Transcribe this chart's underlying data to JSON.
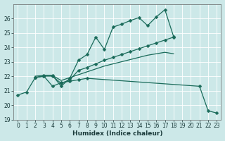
{
  "xlabel": "Humidex (Indice chaleur)",
  "bg_color": "#cce8e8",
  "line_color": "#1a6b5a",
  "grid_color": "#b8d8d8",
  "xlim": [
    -0.5,
    23.5
  ],
  "ylim": [
    19,
    27
  ],
  "yticks": [
    19,
    20,
    21,
    22,
    23,
    24,
    25,
    26
  ],
  "xticks": [
    0,
    1,
    2,
    3,
    4,
    5,
    6,
    7,
    8,
    9,
    10,
    11,
    12,
    13,
    14,
    15,
    16,
    17,
    18,
    19,
    20,
    21,
    22,
    23
  ],
  "series": [
    {
      "x": [
        0,
        1,
        2,
        3,
        4,
        5,
        6,
        7,
        8,
        21,
        22,
        23
      ],
      "y": [
        20.7,
        20.9,
        21.9,
        22.0,
        21.3,
        21.55,
        21.65,
        21.75,
        21.85,
        21.3,
        19.6,
        19.45
      ],
      "marker": true
    },
    {
      "x": [
        2,
        3,
        4,
        5,
        6,
        7,
        8,
        9,
        10,
        11,
        12,
        13,
        14,
        15,
        16,
        17,
        18,
        19,
        20,
        21,
        22,
        23
      ],
      "y": [
        21.9,
        22.0,
        22.0,
        21.5,
        21.75,
        22.4,
        22.6,
        22.85,
        23.1,
        23.3,
        23.5,
        23.7,
        23.9,
        24.1,
        24.3,
        24.5,
        24.7,
        null,
        null,
        null,
        null,
        null
      ],
      "marker": true
    },
    {
      "x": [
        2,
        3,
        4,
        5,
        6,
        7,
        8,
        9,
        10,
        11,
        12,
        13,
        14,
        15,
        16,
        17,
        18
      ],
      "y": [
        21.9,
        22.05,
        22.05,
        21.3,
        21.85,
        23.1,
        23.5,
        24.7,
        23.85,
        25.4,
        25.6,
        25.85,
        26.05,
        25.5,
        26.1,
        26.6,
        24.75
      ],
      "marker": true
    },
    {
      "x": [
        2,
        3,
        4,
        5,
        6,
        7,
        8,
        9,
        10,
        11,
        12,
        13,
        14,
        15,
        16,
        17,
        18,
        19,
        20
      ],
      "y": [
        22.0,
        22.05,
        22.05,
        21.7,
        21.9,
        22.1,
        22.3,
        22.5,
        22.7,
        22.85,
        23.0,
        23.15,
        23.3,
        23.45,
        23.55,
        23.65,
        23.55,
        null,
        null
      ],
      "marker": false
    }
  ]
}
